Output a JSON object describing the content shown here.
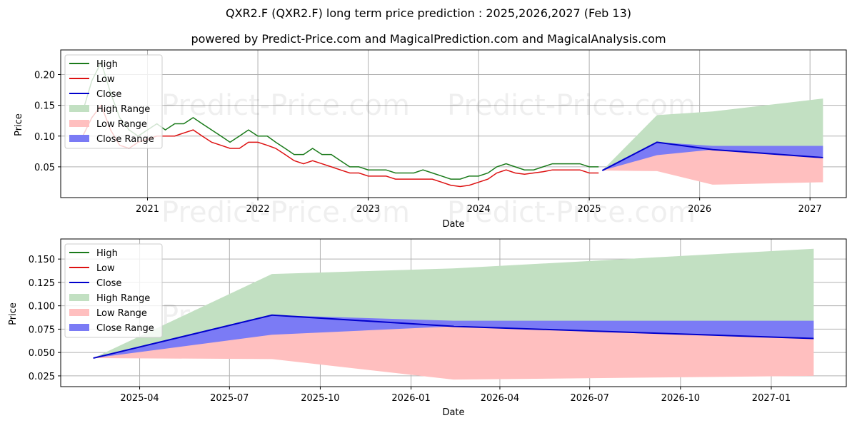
{
  "title": "QXR2.F (QXR2.F) long term price prediction : 2025,2026,2027 (Feb 13)",
  "subtitle": "powered by Predict-Price.com and MagicalPrediction.com and MagicalAnalysis.com",
  "watermark": "Predict-Price.com",
  "colors": {
    "high": "#1a7a1a",
    "low": "#dd1111",
    "close": "#0000cc",
    "high_range": "#c2e0c2",
    "low_range": "#ffbfbf",
    "close_range": "#7b7bf5"
  },
  "chart_data": [
    {
      "type": "line",
      "name": "full-history",
      "xlabel": "Date",
      "ylabel": "Price",
      "xlim": [
        "2020-03-20",
        "2027-05-01"
      ],
      "ylim": [
        0.0,
        0.24
      ],
      "xticks": [
        {
          "date": "2021-01-01",
          "label": "2021"
        },
        {
          "date": "2022-01-01",
          "label": "2022"
        },
        {
          "date": "2023-01-01",
          "label": "2023"
        },
        {
          "date": "2024-01-01",
          "label": "2024"
        },
        {
          "date": "2025-01-01",
          "label": "2025"
        },
        {
          "date": "2026-01-01",
          "label": "2026"
        },
        {
          "date": "2027-01-01",
          "label": "2027"
        }
      ],
      "yticks": [
        {
          "value": 0.05,
          "label": "0.05"
        },
        {
          "value": 0.1,
          "label": "0.10"
        },
        {
          "value": 0.15,
          "label": "0.15"
        },
        {
          "value": 0.2,
          "label": "0.20"
        }
      ],
      "grid": true,
      "legend": "top-left",
      "history": {
        "dates": [
          "2020-06-01",
          "2020-07-01",
          "2020-08-01",
          "2020-09-01",
          "2020-10-01",
          "2020-11-01",
          "2020-12-01",
          "2021-01-01",
          "2021-02-01",
          "2021-03-01",
          "2021-04-01",
          "2021-05-01",
          "2021-06-01",
          "2021-07-01",
          "2021-08-01",
          "2021-09-01",
          "2021-10-01",
          "2021-11-01",
          "2021-12-01",
          "2022-01-01",
          "2022-02-01",
          "2022-03-01",
          "2022-04-01",
          "2022-05-01",
          "2022-06-01",
          "2022-07-01",
          "2022-08-01",
          "2022-09-01",
          "2022-10-01",
          "2022-11-01",
          "2022-12-01",
          "2023-01-01",
          "2023-02-01",
          "2023-03-01",
          "2023-04-01",
          "2023-05-01",
          "2023-06-01",
          "2023-07-01",
          "2023-08-01",
          "2023-09-01",
          "2023-10-01",
          "2023-11-01",
          "2023-12-01",
          "2024-01-01",
          "2024-02-01",
          "2024-03-01",
          "2024-04-01",
          "2024-05-01",
          "2024-06-01",
          "2024-07-01",
          "2024-08-01",
          "2024-09-01",
          "2024-10-01",
          "2024-11-01",
          "2024-12-01",
          "2025-01-01",
          "2025-02-01"
        ],
        "high": [
          0.14,
          0.19,
          0.22,
          0.17,
          0.13,
          0.11,
          0.1,
          0.11,
          0.12,
          0.11,
          0.12,
          0.12,
          0.13,
          0.12,
          0.11,
          0.1,
          0.09,
          0.1,
          0.11,
          0.1,
          0.1,
          0.09,
          0.08,
          0.07,
          0.07,
          0.08,
          0.07,
          0.07,
          0.06,
          0.05,
          0.05,
          0.045,
          0.045,
          0.045,
          0.04,
          0.04,
          0.04,
          0.045,
          0.04,
          0.035,
          0.03,
          0.03,
          0.035,
          0.035,
          0.04,
          0.05,
          0.055,
          0.05,
          0.045,
          0.045,
          0.05,
          0.055,
          0.055,
          0.055,
          0.055,
          0.05,
          0.05
        ],
        "low": [
          0.1,
          0.13,
          0.15,
          0.11,
          0.085,
          0.08,
          0.09,
          0.095,
          0.1,
          0.1,
          0.1,
          0.105,
          0.11,
          0.1,
          0.09,
          0.085,
          0.08,
          0.08,
          0.09,
          0.09,
          0.085,
          0.08,
          0.07,
          0.06,
          0.055,
          0.06,
          0.055,
          0.05,
          0.045,
          0.04,
          0.04,
          0.035,
          0.035,
          0.035,
          0.03,
          0.03,
          0.03,
          0.03,
          0.03,
          0.025,
          0.02,
          0.018,
          0.02,
          0.025,
          0.03,
          0.04,
          0.045,
          0.04,
          0.038,
          0.04,
          0.042,
          0.045,
          0.045,
          0.045,
          0.045,
          0.04,
          0.04
        ]
      },
      "forecast": {
        "dates": [
          "2025-02-13",
          "2025-08-13",
          "2026-02-13",
          "2027-02-13"
        ],
        "close": [
          0.044,
          0.09,
          0.078,
          0.065
        ],
        "high_range_top": [
          0.044,
          0.134,
          0.14,
          0.161
        ],
        "high_range_bottom": [
          0.044,
          0.09,
          0.078,
          0.065
        ],
        "low_range_top": [
          0.044,
          0.09,
          0.078,
          0.065
        ],
        "low_range_bottom": [
          0.044,
          0.043,
          0.021,
          0.025
        ],
        "close_range_top": [
          0.044,
          0.09,
          0.084,
          0.084
        ],
        "close_range_bottom": [
          0.044,
          0.069,
          0.078,
          0.065
        ]
      }
    },
    {
      "type": "line",
      "name": "forecast-zoom",
      "xlabel": "Date",
      "ylabel": "Price",
      "xlim": [
        "2025-01-11",
        "2027-03-18"
      ],
      "ylim": [
        0.0135,
        0.1715
      ],
      "xticks": [
        {
          "date": "2025-04-01",
          "label": "2025-04"
        },
        {
          "date": "2025-07-01",
          "label": "2025-07"
        },
        {
          "date": "2025-10-01",
          "label": "2025-10"
        },
        {
          "date": "2026-01-01",
          "label": "2026-01"
        },
        {
          "date": "2026-04-01",
          "label": "2026-04"
        },
        {
          "date": "2026-07-01",
          "label": "2026-07"
        },
        {
          "date": "2026-10-01",
          "label": "2026-10"
        },
        {
          "date": "2027-01-01",
          "label": "2027-01"
        }
      ],
      "yticks": [
        {
          "value": 0.025,
          "label": "0.025"
        },
        {
          "value": 0.05,
          "label": "0.050"
        },
        {
          "value": 0.075,
          "label": "0.075"
        },
        {
          "value": 0.1,
          "label": "0.100"
        },
        {
          "value": 0.125,
          "label": "0.125"
        },
        {
          "value": 0.15,
          "label": "0.150"
        }
      ],
      "grid": true,
      "legend": "top-left",
      "forecast": {
        "dates": [
          "2025-02-13",
          "2025-08-13",
          "2026-02-13",
          "2027-02-13"
        ],
        "close": [
          0.044,
          0.09,
          0.078,
          0.065
        ],
        "high_range_top": [
          0.044,
          0.134,
          0.14,
          0.161
        ],
        "high_range_bottom": [
          0.044,
          0.09,
          0.078,
          0.065
        ],
        "low_range_top": [
          0.044,
          0.09,
          0.078,
          0.065
        ],
        "low_range_bottom": [
          0.044,
          0.043,
          0.021,
          0.025
        ],
        "close_range_top": [
          0.044,
          0.09,
          0.084,
          0.084
        ],
        "close_range_bottom": [
          0.044,
          0.069,
          0.078,
          0.065
        ]
      }
    }
  ],
  "legend": {
    "high": "High",
    "low": "Low",
    "close": "Close",
    "high_range": "High Range",
    "low_range": "Low Range",
    "close_range": "Close Range"
  }
}
